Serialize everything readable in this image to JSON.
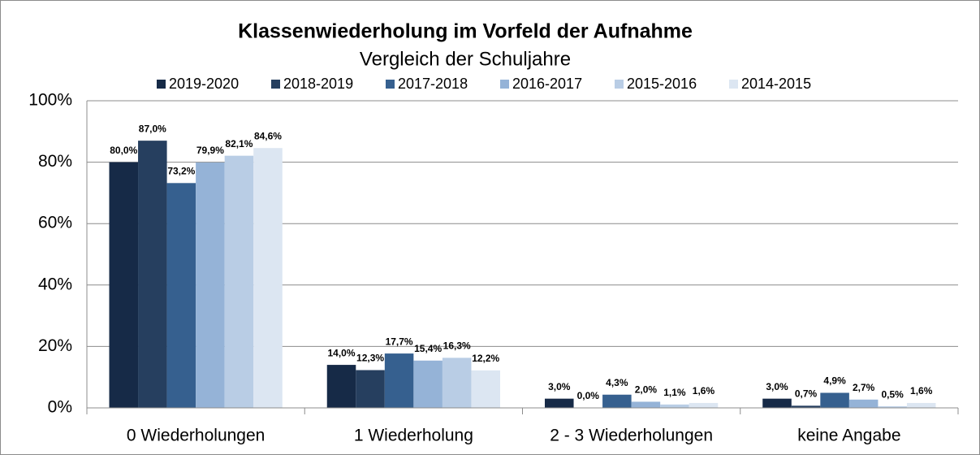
{
  "chart_data": {
    "type": "bar",
    "title": "Klassenwiederholung im Vorfeld der Aufnahme",
    "subtitle": "Vergleich der Schuljahre",
    "categories": [
      "0 Wiederholungen",
      "1 Wiederholung",
      "2 - 3 Wiederholungen",
      "keine Angabe"
    ],
    "series": [
      {
        "name": "2019-2020",
        "color": "#162a47",
        "values": [
          80.0,
          14.0,
          3.0,
          3.0
        ],
        "value_labels": [
          "80,0%",
          "14,0%",
          "3,0%",
          "3,0%"
        ]
      },
      {
        "name": "2018-2019",
        "color": "#263f5f",
        "values": [
          87.0,
          12.3,
          0.0,
          0.7
        ],
        "value_labels": [
          "87,0%",
          "12,3%",
          "0,0%",
          "0,7%"
        ]
      },
      {
        "name": "2017-2018",
        "color": "#36608f",
        "values": [
          73.2,
          17.7,
          4.3,
          4.9
        ],
        "value_labels": [
          "73,2%",
          "17,7%",
          "4,3%",
          "4,9%"
        ]
      },
      {
        "name": "2016-2017",
        "color": "#95b3d7",
        "values": [
          79.9,
          15.4,
          2.0,
          2.7
        ],
        "value_labels": [
          "79,9%",
          "15,4%",
          "2,0%",
          "2,7%"
        ]
      },
      {
        "name": "2015-2016",
        "color": "#b9cde5",
        "values": [
          82.1,
          16.3,
          1.1,
          0.5
        ],
        "value_labels": [
          "82,1%",
          "16,3%",
          "1,1%",
          "0,5%"
        ]
      },
      {
        "name": "2014-2015",
        "color": "#dce6f2",
        "values": [
          84.6,
          12.2,
          1.6,
          1.6
        ],
        "value_labels": [
          "84,6%",
          "12,2%",
          "1,6%",
          "1,6%"
        ]
      }
    ],
    "ylim": [
      0,
      100
    ],
    "yticks": [
      {
        "value": 0,
        "label": "0%"
      },
      {
        "value": 20,
        "label": "20%"
      },
      {
        "value": 40,
        "label": "40%"
      },
      {
        "value": 60,
        "label": "60%"
      },
      {
        "value": 80,
        "label": "80%"
      },
      {
        "value": 100,
        "label": "100%"
      }
    ],
    "grid": true,
    "legend": "top"
  }
}
